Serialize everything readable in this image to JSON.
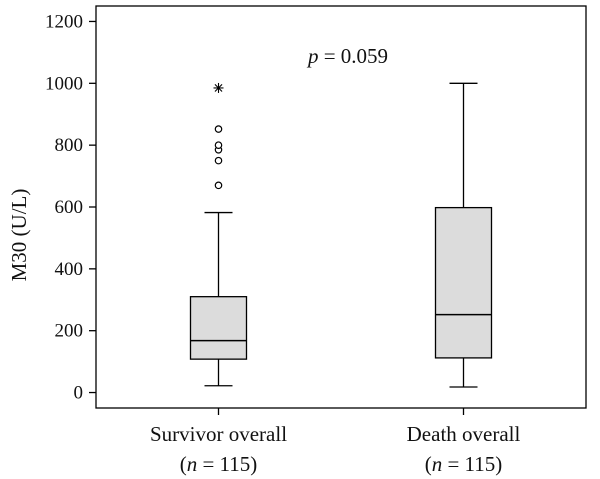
{
  "chart_data": {
    "type": "boxplot",
    "title": "",
    "ylabel": "M30 (U/L)",
    "xlabel": "",
    "ylim": [
      -50,
      1250
    ],
    "yticks": [
      0,
      200,
      400,
      600,
      800,
      1000,
      1200
    ],
    "annotation": {
      "p_symbol": "p",
      "p_rest": " = 0.059"
    },
    "categories": [
      {
        "label": "Survivor overall",
        "n_open": "(",
        "n_symbol": "n",
        "n_rest": " = 115)",
        "whisker_low": 22,
        "q1": 108,
        "median": 168,
        "q3": 310,
        "whisker_high": 582,
        "outliers": [
          670,
          750,
          785,
          800,
          852
        ],
        "extremes": [
          985
        ]
      },
      {
        "label": "Death overall",
        "n_open": "(",
        "n_symbol": "n",
        "n_rest": " = 115)",
        "whisker_low": 18,
        "q1": 112,
        "median": 252,
        "q3": 598,
        "whisker_high": 1000,
        "outliers": [],
        "extremes": []
      }
    ],
    "box_fill": "#dcdcdc",
    "line_color": "#000000"
  }
}
